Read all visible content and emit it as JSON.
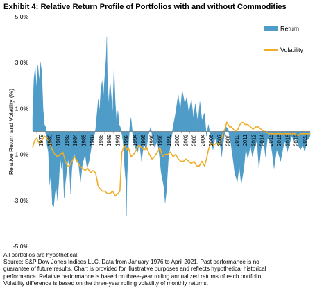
{
  "chart_data": {
    "type": "area",
    "title": "Exhibit 4: Relative Return Profile of Portfolios with and without Commodities",
    "ylabel": "Relative Return and Volatility (%)",
    "xlabel": "",
    "ylim": [
      -5.0,
      5.0
    ],
    "y_ticks": [
      "5.0%",
      "3.0%",
      "1.0%",
      "-1.0%",
      "-3.0%",
      "-5.0%"
    ],
    "y_tick_values": [
      5,
      3,
      1,
      -1,
      -3,
      -5
    ],
    "x_ticks": [
      "1979",
      "1980",
      "1981",
      "1983",
      "1984",
      "1985",
      "1987",
      "1988",
      "1989",
      "1991",
      "1992",
      "1994",
      "1995",
      "1996",
      "1998",
      "1999",
      "2000",
      "2002",
      "2003",
      "2004",
      "2006",
      "2007",
      "2008",
      "2010",
      "2011",
      "2012",
      "2014",
      "2015",
      "2016",
      "2018",
      "2019",
      "2020"
    ],
    "legend_position": "top-right",
    "grid": false,
    "series": [
      {
        "name": "Return",
        "type": "area",
        "color": "#4f9cc8",
        "points": [
          [
            1979.0,
            0.6
          ],
          [
            1979.2,
            2.3
          ],
          [
            1979.4,
            2.8
          ],
          [
            1979.6,
            1.9
          ],
          [
            1979.8,
            2.9
          ],
          [
            1980.0,
            2.2
          ],
          [
            1980.2,
            3.0
          ],
          [
            1980.4,
            2.6
          ],
          [
            1980.6,
            1.0
          ],
          [
            1980.8,
            0.3
          ],
          [
            1981.0,
            0.2
          ],
          [
            1981.2,
            -0.6
          ],
          [
            1981.4,
            -0.9
          ],
          [
            1981.6,
            -2.3
          ],
          [
            1981.8,
            -1.8
          ],
          [
            1982.0,
            -3.2
          ],
          [
            1982.2,
            -3.3
          ],
          [
            1982.4,
            -2.7
          ],
          [
            1982.6,
            -2.4
          ],
          [
            1982.8,
            -3.0
          ],
          [
            1983.0,
            -2.2
          ],
          [
            1983.2,
            -1.1
          ],
          [
            1983.4,
            -1.6
          ],
          [
            1983.6,
            -1.3
          ],
          [
            1983.8,
            -2.9
          ],
          [
            1984.0,
            -2.2
          ],
          [
            1984.2,
            -1.7
          ],
          [
            1984.4,
            -1.2
          ],
          [
            1984.6,
            -1.6
          ],
          [
            1984.8,
            -2.7
          ],
          [
            1985.0,
            -1.6
          ],
          [
            1985.3,
            -0.9
          ],
          [
            1985.6,
            -1.3
          ],
          [
            1986.0,
            -1.4
          ],
          [
            1986.3,
            -2.2
          ],
          [
            1986.6,
            -1.4
          ],
          [
            1987.0,
            -1.0
          ],
          [
            1987.3,
            -1.6
          ],
          [
            1987.6,
            -1.3
          ],
          [
            1988.0,
            -0.6
          ],
          [
            1988.3,
            -0.3
          ],
          [
            1988.6,
            0.1
          ],
          [
            1989.0,
            1.4
          ],
          [
            1989.2,
            0.9
          ],
          [
            1989.4,
            1.8
          ],
          [
            1989.6,
            2.2
          ],
          [
            1989.8,
            1.5
          ],
          [
            1990.0,
            2.4
          ],
          [
            1990.2,
            3.2
          ],
          [
            1990.3,
            4.1
          ],
          [
            1990.4,
            2.3
          ],
          [
            1990.6,
            1.2
          ],
          [
            1990.8,
            2.2
          ],
          [
            1991.0,
            1.5
          ],
          [
            1991.2,
            0.8
          ],
          [
            1991.4,
            2.8
          ],
          [
            1991.6,
            1.3
          ],
          [
            1991.8,
            0.4
          ],
          [
            1992.0,
            0.9
          ],
          [
            1992.2,
            0.3
          ],
          [
            1992.5,
            0.1
          ],
          [
            1992.8,
            -0.5
          ],
          [
            1993.0,
            -1.5
          ],
          [
            1993.2,
            -2.2
          ],
          [
            1993.3,
            -3.7
          ],
          [
            1993.4,
            -2.0
          ],
          [
            1993.6,
            -0.6
          ],
          [
            1993.8,
            0.2
          ],
          [
            1994.0,
            0.6
          ],
          [
            1994.3,
            -0.3
          ],
          [
            1994.6,
            -0.7
          ],
          [
            1995.0,
            -0.9
          ],
          [
            1995.3,
            -0.5
          ],
          [
            1995.6,
            -1.3
          ],
          [
            1996.0,
            -0.4
          ],
          [
            1996.3,
            -0.9
          ],
          [
            1996.6,
            -0.2
          ],
          [
            1997.0,
            0.2
          ],
          [
            1997.3,
            -0.3
          ],
          [
            1997.6,
            -0.7
          ],
          [
            1998.0,
            -0.4
          ],
          [
            1998.3,
            -1.0
          ],
          [
            1998.6,
            -1.8
          ],
          [
            1999.0,
            -2.4
          ],
          [
            1999.2,
            -3.1
          ],
          [
            1999.4,
            -2.6
          ],
          [
            1999.7,
            -1.2
          ],
          [
            2000.0,
            -0.6
          ],
          [
            2000.4,
            0.2
          ],
          [
            2000.8,
            0.8
          ],
          [
            2001.2,
            1.6
          ],
          [
            2001.5,
            0.9
          ],
          [
            2001.8,
            1.8
          ],
          [
            2002.2,
            1.2
          ],
          [
            2002.5,
            1.5
          ],
          [
            2002.8,
            0.8
          ],
          [
            2003.2,
            1.4
          ],
          [
            2003.5,
            0.6
          ],
          [
            2003.8,
            1.2
          ],
          [
            2004.2,
            0.4
          ],
          [
            2004.5,
            1.3
          ],
          [
            2004.8,
            0.5
          ],
          [
            2005.2,
            0.8
          ],
          [
            2005.5,
            -0.2
          ],
          [
            2005.8,
            0.3
          ],
          [
            2006.2,
            -0.4
          ],
          [
            2006.5,
            -0.8
          ],
          [
            2006.8,
            -0.3
          ],
          [
            2007.2,
            -0.6
          ],
          [
            2007.5,
            -0.3
          ],
          [
            2007.8,
            -1.1
          ],
          [
            2008.2,
            -0.2
          ],
          [
            2008.5,
            0.2
          ],
          [
            2008.8,
            0.1
          ],
          [
            2009.2,
            -0.5
          ],
          [
            2009.5,
            -1.1
          ],
          [
            2009.8,
            -1.8
          ],
          [
            2010.2,
            -2.2
          ],
          [
            2010.5,
            -1.5
          ],
          [
            2010.8,
            -2.3
          ],
          [
            2011.2,
            -1.6
          ],
          [
            2011.5,
            -0.7
          ],
          [
            2011.8,
            -1.2
          ],
          [
            2012.2,
            -0.6
          ],
          [
            2012.5,
            -1.1
          ],
          [
            2012.8,
            -0.7
          ],
          [
            2013.2,
            -0.4
          ],
          [
            2013.5,
            -1.6
          ],
          [
            2013.8,
            -0.8
          ],
          [
            2014.2,
            -0.4
          ],
          [
            2014.5,
            -1.1
          ],
          [
            2014.8,
            -0.3
          ],
          [
            2015.2,
            -0.4
          ],
          [
            2015.5,
            -0.9
          ],
          [
            2015.8,
            -1.6
          ],
          [
            2016.2,
            -0.8
          ],
          [
            2016.5,
            -1.0
          ],
          [
            2016.8,
            -1.3
          ],
          [
            2017.2,
            -0.7
          ],
          [
            2017.5,
            -0.4
          ],
          [
            2017.8,
            -0.9
          ],
          [
            2018.2,
            -0.5
          ],
          [
            2018.5,
            -0.2
          ],
          [
            2018.8,
            -0.4
          ],
          [
            2019.2,
            -0.3
          ],
          [
            2019.5,
            -0.6
          ],
          [
            2019.8,
            -0.8
          ],
          [
            2020.2,
            -0.6
          ],
          [
            2020.5,
            -0.9
          ],
          [
            2020.8,
            -0.4
          ],
          [
            2021.1,
            -0.3
          ],
          [
            2021.3,
            -0.2
          ]
        ]
      },
      {
        "name": "Volatility",
        "type": "line",
        "color": "#f0ad26",
        "points": [
          [
            1979.0,
            -0.7
          ],
          [
            1979.3,
            -0.4
          ],
          [
            1979.6,
            -0.3
          ],
          [
            1980.0,
            -0.5
          ],
          [
            1980.4,
            -0.4
          ],
          [
            1980.8,
            -0.2
          ],
          [
            1981.2,
            -0.3
          ],
          [
            1981.6,
            -0.5
          ],
          [
            1982.0,
            -0.8
          ],
          [
            1982.4,
            -1.0
          ],
          [
            1982.8,
            -1.1
          ],
          [
            1983.2,
            -1.0
          ],
          [
            1983.6,
            -0.9
          ],
          [
            1984.0,
            -1.3
          ],
          [
            1984.3,
            -1.5
          ],
          [
            1984.6,
            -1.5
          ],
          [
            1985.0,
            -1.3
          ],
          [
            1985.4,
            -1.1
          ],
          [
            1985.8,
            -1.3
          ],
          [
            1986.2,
            -1.5
          ],
          [
            1986.6,
            -1.6
          ],
          [
            1987.0,
            -1.7
          ],
          [
            1987.4,
            -1.6
          ],
          [
            1987.8,
            -1.8
          ],
          [
            1988.2,
            -1.7
          ],
          [
            1988.6,
            -1.8
          ],
          [
            1989.0,
            -2.4
          ],
          [
            1989.3,
            -2.5
          ],
          [
            1989.6,
            -2.6
          ],
          [
            1990.0,
            -2.6
          ],
          [
            1990.4,
            -2.7
          ],
          [
            1990.8,
            -2.7
          ],
          [
            1991.2,
            -2.6
          ],
          [
            1991.6,
            -2.8
          ],
          [
            1992.0,
            -2.7
          ],
          [
            1992.3,
            -2.6
          ],
          [
            1992.6,
            -0.9
          ],
          [
            1993.0,
            -0.6
          ],
          [
            1993.3,
            -0.8
          ],
          [
            1993.6,
            -0.7
          ],
          [
            1994.0,
            -1.1
          ],
          [
            1994.4,
            -1.0
          ],
          [
            1994.8,
            -0.8
          ],
          [
            1995.2,
            -0.6
          ],
          [
            1995.6,
            -0.7
          ],
          [
            1996.0,
            -0.8
          ],
          [
            1996.4,
            -0.7
          ],
          [
            1996.8,
            -1.0
          ],
          [
            1997.2,
            -1.2
          ],
          [
            1997.6,
            -1.1
          ],
          [
            1998.0,
            -0.9
          ],
          [
            1998.4,
            -0.7
          ],
          [
            1998.8,
            -1.1
          ],
          [
            1999.2,
            -1.0
          ],
          [
            1999.6,
            -1.0
          ],
          [
            2000.0,
            -0.9
          ],
          [
            2000.4,
            -1.1
          ],
          [
            2000.8,
            -1.0
          ],
          [
            2001.2,
            -1.2
          ],
          [
            2001.6,
            -1.3
          ],
          [
            2002.0,
            -1.3
          ],
          [
            2002.4,
            -1.2
          ],
          [
            2002.8,
            -1.3
          ],
          [
            2003.2,
            -1.4
          ],
          [
            2003.6,
            -1.3
          ],
          [
            2004.0,
            -1.5
          ],
          [
            2004.4,
            -1.5
          ],
          [
            2004.8,
            -1.3
          ],
          [
            2005.2,
            -1.5
          ],
          [
            2005.5,
            -1.2
          ],
          [
            2005.8,
            -0.8
          ],
          [
            2006.2,
            -0.5
          ],
          [
            2006.6,
            -0.6
          ],
          [
            2007.0,
            -0.5
          ],
          [
            2007.4,
            -0.6
          ],
          [
            2007.8,
            -0.3
          ],
          [
            2008.0,
            -0.1
          ],
          [
            2008.3,
            0.1
          ],
          [
            2008.6,
            0.4
          ],
          [
            2009.0,
            0.2
          ],
          [
            2009.3,
            0.2
          ],
          [
            2009.6,
            0.1
          ],
          [
            2010.0,
            0.0
          ],
          [
            2010.3,
            0.1
          ],
          [
            2010.6,
            0.3
          ],
          [
            2011.0,
            0.4
          ],
          [
            2011.4,
            0.3
          ],
          [
            2011.8,
            0.3
          ],
          [
            2012.2,
            0.2
          ],
          [
            2012.6,
            0.1
          ],
          [
            2013.0,
            0.2
          ],
          [
            2013.4,
            0.2
          ],
          [
            2013.8,
            0.1
          ],
          [
            2014.2,
            0.0
          ],
          [
            2014.6,
            0.0
          ],
          [
            2015.0,
            -0.1
          ],
          [
            2015.4,
            -0.1
          ],
          [
            2015.8,
            -0.1
          ],
          [
            2016.2,
            -0.1
          ],
          [
            2016.6,
            -0.1
          ],
          [
            2017.0,
            -0.1
          ],
          [
            2017.4,
            -0.1
          ],
          [
            2017.8,
            -0.1
          ],
          [
            2018.2,
            -0.1
          ],
          [
            2018.6,
            -0.1
          ],
          [
            2019.0,
            -0.1
          ],
          [
            2019.4,
            -0.2
          ],
          [
            2019.8,
            -0.1
          ],
          [
            2020.2,
            -0.1
          ],
          [
            2020.6,
            -0.1
          ],
          [
            2021.0,
            -0.1
          ],
          [
            2021.3,
            -0.1
          ]
        ]
      }
    ]
  },
  "notes": {
    "line1": "All portfolios are hypothetical.",
    "line2": "Source: S&P Dow Jones Indices LLC.  Data from January 1976 to April 2021.  Past performance is no",
    "line3": "guarantee of future results.  Chart is provided for illustrative purposes and reflects hypothetical historical",
    "line4": "performance.  Relative performance is based on three-year rolling annualized returns of each portfolio.",
    "line5": "Volatility difference is based on the three-year rolling volatility of monthly returns."
  }
}
